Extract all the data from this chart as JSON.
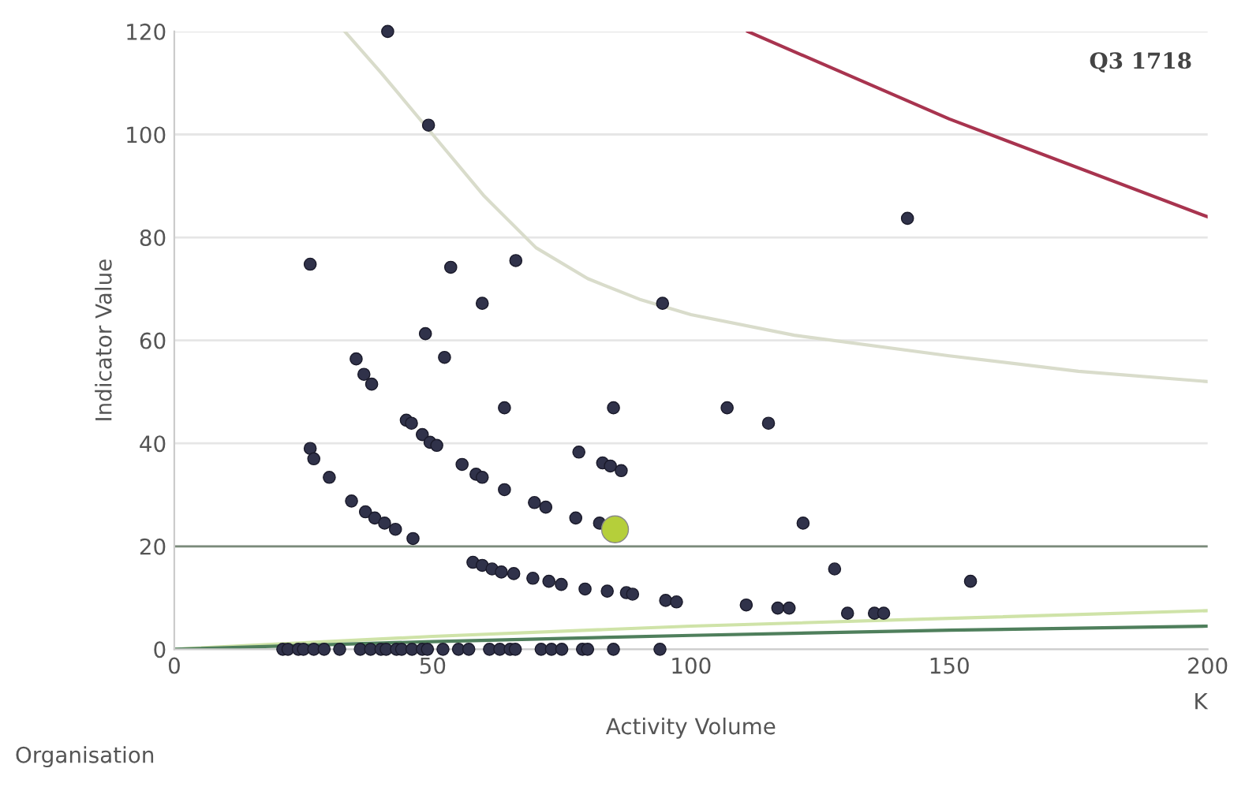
{
  "chart_data": {
    "type": "scatter",
    "title": "Q3 1718",
    "xlabel": "Activity Volume",
    "ylabel": "Indicator Value",
    "annotations": [
      "K",
      "Organisation"
    ],
    "xlim": [
      0,
      200
    ],
    "ylim": [
      0,
      120
    ],
    "xticks": [
      0,
      50,
      100,
      150,
      200
    ],
    "yticks": [
      0,
      20,
      40,
      60,
      80,
      100,
      120
    ],
    "grid": "y",
    "ref_lines": [
      {
        "axis": "y",
        "value": 20,
        "color": "#7a8a7a"
      }
    ],
    "series": [
      {
        "type": "line",
        "marker": "none",
        "color": "#d9dccb",
        "x": [
          33,
          40,
          50,
          60,
          70,
          80,
          90,
          100,
          120,
          150,
          175,
          200
        ],
        "values": [
          120,
          112,
          100,
          88,
          78,
          72,
          68,
          65,
          61,
          57,
          54,
          52
        ]
      },
      {
        "type": "line",
        "marker": "none",
        "color": "#a8344f",
        "x": [
          111,
          150,
          200
        ],
        "values": [
          120,
          103,
          84
        ]
      },
      {
        "type": "line",
        "marker": "none",
        "color": "#cfe3a8",
        "x": [
          0,
          50,
          100,
          150,
          200
        ],
        "values": [
          0,
          2.5,
          4.5,
          6,
          7.5
        ]
      },
      {
        "type": "line",
        "marker": "none",
        "color": "#4f7f5c",
        "x": [
          0,
          50,
          100,
          150,
          200
        ],
        "values": [
          0,
          1.5,
          2.7,
          3.7,
          4.5
        ]
      },
      {
        "marker": "circle",
        "color": "#30324a",
        "x": [
          41.3,
          49.2,
          26.3,
          53.5,
          66.1,
          59.6,
          48.6,
          52.3,
          141.9,
          94.5,
          35.2,
          36.7,
          38.2,
          63.9,
          85,
          107,
          115,
          26.3,
          27,
          30,
          34.3,
          37,
          38.8,
          40.7,
          42.8,
          46.2,
          44.9,
          45.9,
          48,
          49.5,
          50.8,
          55.7,
          58.4,
          59.6,
          63.9,
          69.7,
          71.9,
          78.3,
          82.9,
          84.4,
          86.5,
          77.7,
          82.3,
          121.7,
          57.8,
          59.6,
          61.5,
          63.3,
          65.7,
          69.4,
          72.5,
          74.9,
          79.5,
          83.8,
          87.5,
          88.7,
          95.1,
          97.2,
          110.7,
          116.8,
          119,
          127.8,
          130.3,
          135.5,
          137.3,
          154.1,
          21,
          22,
          24,
          25,
          27,
          29,
          32,
          36,
          38,
          40,
          41,
          43,
          44,
          46,
          48,
          49,
          52,
          55,
          57,
          61,
          63,
          65,
          66,
          71,
          73,
          75,
          79,
          80,
          85,
          94
        ],
        "values": [
          120,
          101.8,
          74.8,
          74.2,
          75.5,
          67.2,
          61.3,
          56.7,
          83.7,
          67.2,
          56.4,
          53.4,
          51.5,
          46.9,
          46.9,
          46.9,
          43.9,
          39,
          37,
          33.4,
          28.8,
          26.7,
          25.5,
          24.5,
          23.3,
          21.5,
          44.5,
          43.9,
          41.7,
          40.2,
          39.6,
          35.9,
          34,
          33.4,
          31,
          28.5,
          27.6,
          38.3,
          36.2,
          35.6,
          34.7,
          25.5,
          24.5,
          24.5,
          16.9,
          16.3,
          15.6,
          15,
          14.7,
          13.8,
          13.2,
          12.6,
          11.7,
          11.3,
          11,
          10.7,
          9.5,
          9.2,
          8.6,
          8,
          8,
          15.6,
          7,
          7,
          7,
          13.2,
          0,
          0,
          0,
          0,
          0,
          0,
          0,
          0,
          0,
          0,
          0,
          0,
          0,
          0,
          0,
          0,
          0,
          0,
          0,
          0,
          0,
          0,
          0,
          0,
          0,
          0,
          0,
          0,
          0,
          0
        ]
      },
      {
        "marker": "circle",
        "color": "#b5cf3a",
        "x": [
          85.3
        ],
        "values": [
          23.3
        ]
      }
    ]
  }
}
